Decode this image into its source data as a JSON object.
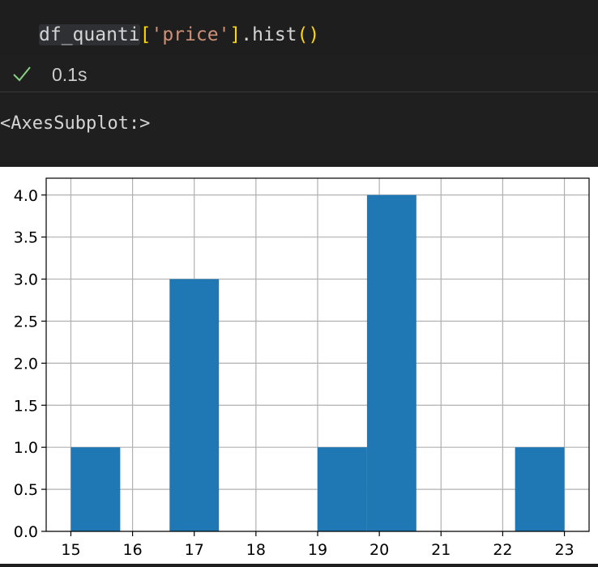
{
  "code_cell": {
    "tokens": {
      "var": "df_quanti",
      "open_bracket": "[",
      "string": "'price'",
      "close_bracket": "]",
      "method": ".hist",
      "parens": "()"
    },
    "status": {
      "icon": "check-icon",
      "time": "0.1s",
      "color": "#89d185"
    },
    "output_text": "<AxesSubplot:>"
  },
  "chart_data": {
    "type": "bar",
    "title": "",
    "xlabel": "",
    "ylabel": "",
    "bar_color": "#1f77b4",
    "grid": true,
    "xlim": [
      14.6,
      23.4
    ],
    "ylim": [
      0,
      4.2
    ],
    "xticks": [
      15,
      16,
      17,
      18,
      19,
      20,
      21,
      22,
      23
    ],
    "yticks": [
      0.0,
      0.5,
      1.0,
      1.5,
      2.0,
      2.5,
      3.0,
      3.5,
      4.0
    ],
    "ytick_labels": [
      "0.0",
      "0.5",
      "1.0",
      "1.5",
      "2.0",
      "2.5",
      "3.0",
      "3.5",
      "4.0"
    ],
    "bins": [
      {
        "x0": 15.0,
        "x1": 15.8,
        "value": 1
      },
      {
        "x0": 15.8,
        "x1": 16.6,
        "value": 0
      },
      {
        "x0": 16.6,
        "x1": 17.4,
        "value": 3
      },
      {
        "x0": 17.4,
        "x1": 18.2,
        "value": 0
      },
      {
        "x0": 18.2,
        "x1": 19.0,
        "value": 0
      },
      {
        "x0": 19.0,
        "x1": 19.8,
        "value": 1
      },
      {
        "x0": 19.8,
        "x1": 20.6,
        "value": 4
      },
      {
        "x0": 20.6,
        "x1": 21.4,
        "value": 0
      },
      {
        "x0": 21.4,
        "x1": 22.2,
        "value": 0
      },
      {
        "x0": 22.2,
        "x1": 23.0,
        "value": 1
      }
    ]
  }
}
